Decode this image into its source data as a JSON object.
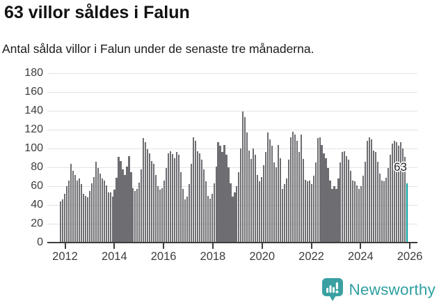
{
  "header": {
    "title": "63 villor såldes i Falun",
    "subtitle": "Antal sålda villor i Falun under de senaste tre månaderna."
  },
  "chart_data": {
    "type": "bar",
    "title": "63 villor såldes i Falun",
    "xlabel": "",
    "ylabel": "",
    "ylim": [
      0,
      180
    ],
    "yticks": [
      0,
      20,
      40,
      60,
      80,
      100,
      120,
      140,
      160,
      180
    ],
    "xticks": [
      2012,
      2014,
      2016,
      2018,
      2020,
      2022,
      2024,
      2026
    ],
    "grid": true,
    "legend": false,
    "frequency": "monthly",
    "x_start": "2012-01",
    "x_end": "2025-12",
    "values": [
      44,
      46,
      52,
      60,
      66,
      84,
      76,
      72,
      66,
      68,
      62,
      52,
      50,
      48,
      55,
      63,
      70,
      86,
      79,
      73,
      68,
      66,
      61,
      53,
      53,
      49,
      56,
      69,
      91,
      87,
      78,
      72,
      81,
      92,
      75,
      58,
      55,
      57,
      64,
      78,
      111,
      107,
      99,
      95,
      87,
      84,
      72,
      60,
      56,
      58,
      66,
      79,
      95,
      97,
      94,
      90,
      96,
      93,
      75,
      57,
      46,
      49,
      62,
      84,
      112,
      108,
      97,
      95,
      88,
      78,
      65,
      50,
      47,
      52,
      63,
      81,
      107,
      103,
      96,
      104,
      93,
      80,
      63,
      49,
      53,
      60,
      75,
      100,
      139,
      133,
      117,
      98,
      89,
      100,
      93,
      72,
      65,
      70,
      82,
      96,
      117,
      110,
      103,
      85,
      80,
      104,
      90,
      57,
      62,
      68,
      88,
      112,
      118,
      115,
      108,
      96,
      115,
      89,
      67,
      65,
      66,
      62,
      71,
      85,
      111,
      112,
      104,
      95,
      90,
      79,
      66,
      57,
      60,
      57,
      68,
      85,
      96,
      97,
      92,
      88,
      76,
      66,
      65,
      61,
      57,
      60,
      71,
      86,
      108,
      112,
      110,
      98,
      96,
      86,
      73,
      66,
      65,
      69,
      79,
      93,
      105,
      108,
      107,
      103,
      107,
      100,
      91,
      63
    ],
    "bar_color": "#6d6d72",
    "highlight": {
      "index": 167,
      "value": 63,
      "label": "63",
      "color": "#009e99"
    }
  },
  "footer": {
    "brand": "Newsworthy",
    "brand_color": "#2f9fa1",
    "logo_icon": "newsworthy-speech-bubble-bar-chart-icon",
    "icon_color": "#3aa0a2"
  }
}
